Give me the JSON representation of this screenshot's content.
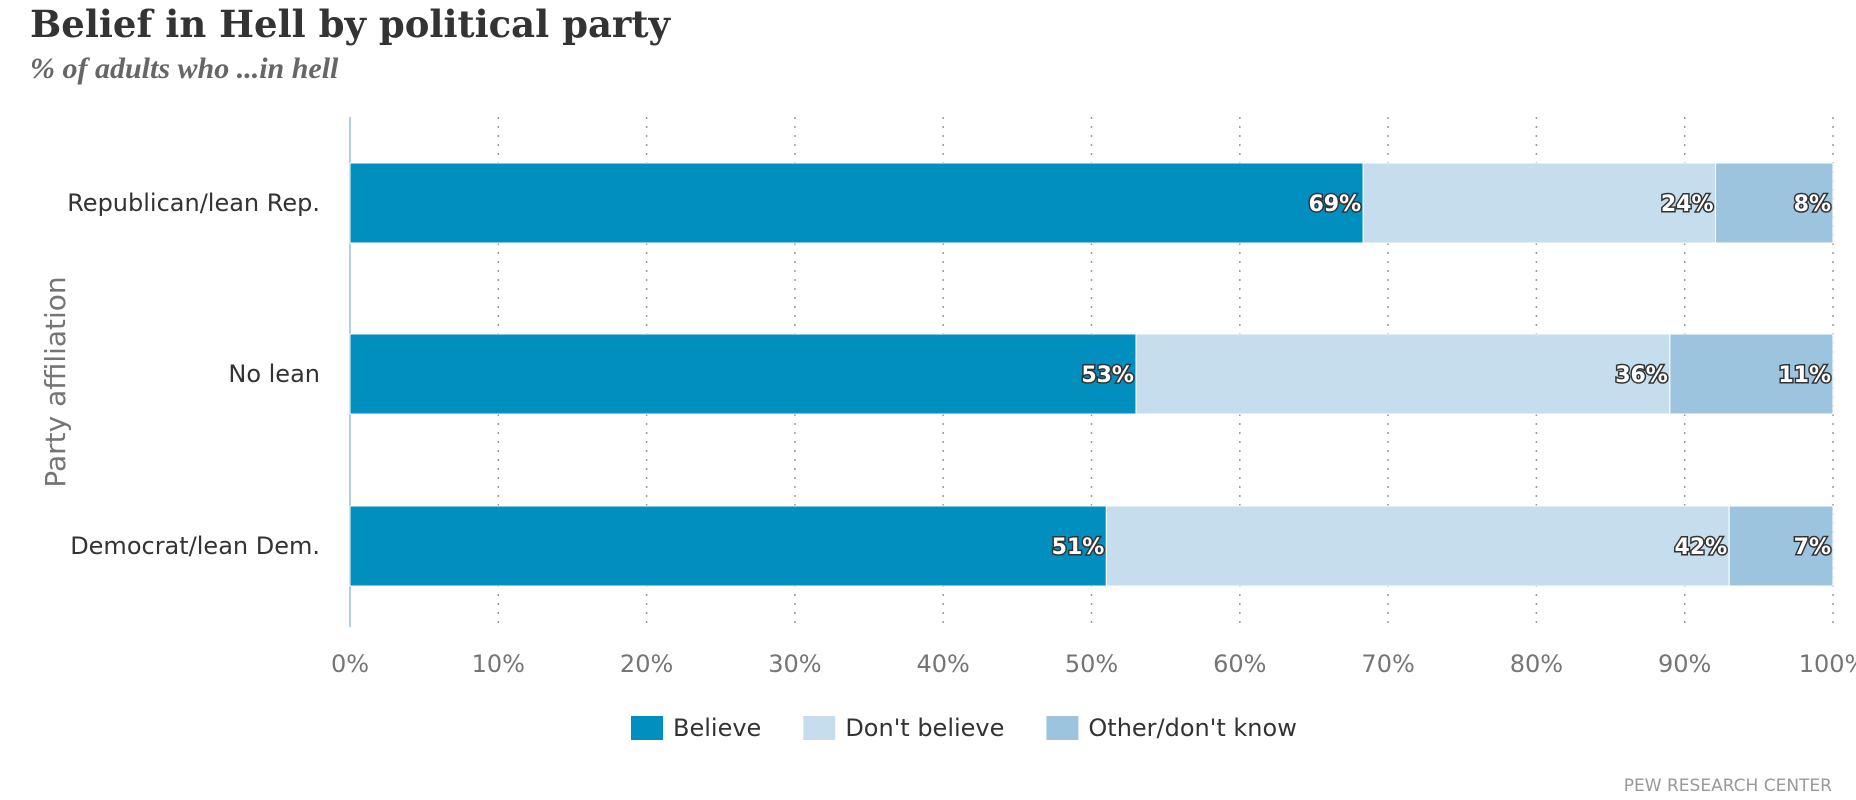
{
  "header": {
    "title": "Belief in Hell by political party",
    "subtitle": "% of adults who ...in hell"
  },
  "footer": {
    "source": "PEW RESEARCH CENTER"
  },
  "chart_data": {
    "type": "bar",
    "orientation": "horizontal",
    "stacked": true,
    "title": "Belief in Hell by political party",
    "subtitle": "% of adults who ...in hell",
    "xlabel": "",
    "ylabel": "Party affiliation",
    "xlim": [
      0,
      100
    ],
    "x_ticks": [
      "0%",
      "10%",
      "20%",
      "30%",
      "40%",
      "50%",
      "60%",
      "70%",
      "80%",
      "90%",
      "100%"
    ],
    "grid": "vertical dotted",
    "legend_position": "bottom-center",
    "categories": [
      "Republican/lean Rep.",
      "No lean",
      "Democrat/lean Dem."
    ],
    "series": [
      {
        "name": "Believe",
        "color": "#008fbe",
        "values": [
          69,
          53,
          51
        ]
      },
      {
        "name": "Don't believe",
        "color": "#c6dded",
        "values": [
          24,
          36,
          42
        ]
      },
      {
        "name": "Other/don't know",
        "color": "#9dc4df",
        "values": [
          8,
          11,
          7
        ]
      }
    ]
  }
}
